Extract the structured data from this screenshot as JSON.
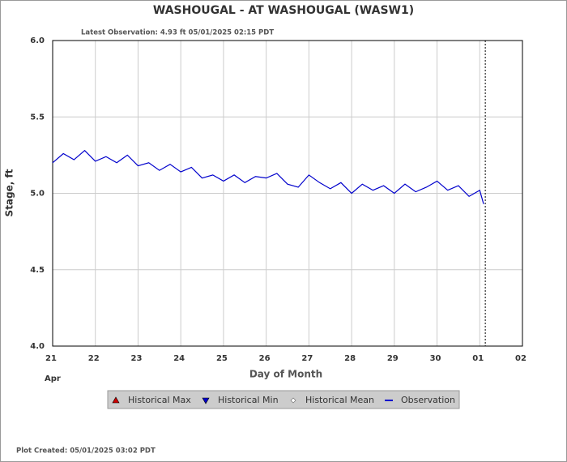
{
  "chart_data": {
    "type": "line",
    "title": "WASHOUGAL - AT WASHOUGAL  (WASW1)",
    "subtitle": "Latest Observation: 4.93 ft 05/01/2025 02:15 PDT",
    "y_label": "Stage, ft",
    "x_label": "Day of Month",
    "month_label": "Apr",
    "footer": "Plot Created: 05/01/2025 03:02 PDT",
    "xlim": [
      0,
      11
    ],
    "xticks": [
      {
        "value": 0,
        "label": "21"
      },
      {
        "value": 1,
        "label": "22"
      },
      {
        "value": 2,
        "label": "23"
      },
      {
        "value": 3,
        "label": "24"
      },
      {
        "value": 4,
        "label": "25"
      },
      {
        "value": 5,
        "label": "26"
      },
      {
        "value": 6,
        "label": "27"
      },
      {
        "value": 7,
        "label": "28"
      },
      {
        "value": 8,
        "label": "29"
      },
      {
        "value": 9,
        "label": "30"
      },
      {
        "value": 10,
        "label": "01"
      },
      {
        "value": 11,
        "label": "02"
      }
    ],
    "ylim": [
      4.0,
      6.0
    ],
    "yticks": [
      {
        "value": 4.0,
        "label": "4.0"
      },
      {
        "value": 4.5,
        "label": "4.5"
      },
      {
        "value": 5.0,
        "label": "5.0"
      },
      {
        "value": 5.5,
        "label": "5.5"
      },
      {
        "value": 6.0,
        "label": "6.0"
      }
    ],
    "grid": true,
    "current_time_x": 10.13,
    "x": [
      0,
      0.25,
      0.5,
      0.75,
      1,
      1.25,
      1.5,
      1.75,
      2,
      2.25,
      2.5,
      2.75,
      3,
      3.25,
      3.5,
      3.75,
      4,
      4.25,
      4.5,
      4.75,
      5,
      5.25,
      5.5,
      5.75,
      6,
      6.25,
      6.5,
      6.75,
      7,
      7.25,
      7.5,
      7.75,
      8,
      8.25,
      8.5,
      8.75,
      9,
      9.25,
      9.5,
      9.75,
      10,
      10.09
    ],
    "series": [
      {
        "name": "Observation",
        "color": "#0000cc",
        "values": [
          5.2,
          5.26,
          5.22,
          5.28,
          5.21,
          5.24,
          5.2,
          5.25,
          5.18,
          5.2,
          5.15,
          5.19,
          5.14,
          5.17,
          5.1,
          5.12,
          5.08,
          5.12,
          5.07,
          5.11,
          5.1,
          5.13,
          5.06,
          5.04,
          5.12,
          5.07,
          5.03,
          5.07,
          5.0,
          5.06,
          5.02,
          5.05,
          5.0,
          5.06,
          5.01,
          5.04,
          5.08,
          5.02,
          5.05,
          4.98,
          5.02,
          4.93
        ]
      }
    ],
    "legend_extra": [
      {
        "name": "Historical Max",
        "color": "#cc0000",
        "marker": "triangle-up"
      },
      {
        "name": "Historical Min",
        "color": "#0000cc",
        "marker": "triangle-down"
      },
      {
        "name": "Historical Mean",
        "color": "#666666",
        "marker": "diamond"
      }
    ]
  }
}
